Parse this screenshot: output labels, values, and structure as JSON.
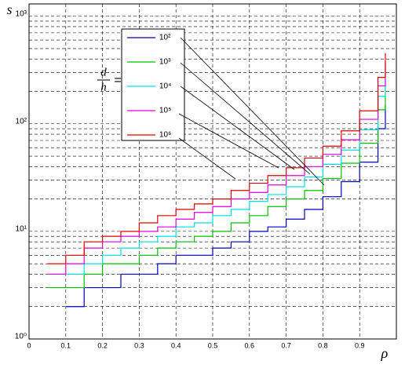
{
  "chart_data": {
    "type": "step",
    "step": "post",
    "y_label": "s",
    "x_label": "ρ",
    "legend_label_top": "d",
    "legend_label_bottom": "h",
    "legend_label_sign": "=",
    "log_y": true,
    "grid": true,
    "xlim": [
      0,
      1
    ],
    "xticks": [
      0,
      0.1,
      0.2,
      0.3,
      0.4,
      0.5,
      0.6,
      0.7,
      0.8,
      0.9
    ],
    "ylim": [
      1,
      1300
    ],
    "yticks": [
      {
        "value": 1,
        "label": "10⁰"
      },
      {
        "value": 10,
        "label": "10¹"
      },
      {
        "value": 100,
        "label": "10²"
      },
      {
        "value": 1000,
        "label": "10³"
      }
    ],
    "yminorticks": [
      2,
      3,
      4,
      5,
      6,
      7,
      8,
      9,
      20,
      30,
      40,
      50,
      60,
      70,
      80,
      90,
      200,
      300,
      400,
      500,
      600,
      700,
      800,
      900
    ],
    "x": [
      0.05,
      0.1,
      0.15,
      0.2,
      0.25,
      0.3,
      0.35,
      0.4,
      0.45,
      0.5,
      0.55,
      0.6,
      0.65,
      0.7,
      0.75,
      0.8,
      0.85,
      0.9,
      0.95,
      0.97
    ],
    "series": [
      {
        "name": "10²",
        "color": "#0000c0",
        "values": [
          null,
          2,
          3,
          3,
          4,
          4,
          5,
          6,
          6,
          7,
          8,
          10,
          11,
          13,
          16,
          21,
          29,
          44,
          90,
          151
        ]
      },
      {
        "name": "10³",
        "color": "#00c000",
        "values": [
          3,
          3,
          4,
          5,
          5,
          6,
          7,
          8,
          9,
          10,
          12,
          14,
          17,
          20,
          24,
          31,
          43,
          66,
          135,
          226
        ]
      },
      {
        "name": "10⁴",
        "color": "#00e0e0",
        "values": [
          4,
          4,
          5,
          6,
          7,
          8,
          9,
          11,
          12,
          14,
          16,
          19,
          22,
          26,
          32,
          42,
          57,
          88,
          180,
          302
        ]
      },
      {
        "name": "10⁵",
        "color": "#e000e0",
        "values": [
          4,
          5,
          7,
          8,
          9,
          10,
          11,
          13,
          15,
          17,
          20,
          23,
          27,
          33,
          40,
          52,
          71,
          110,
          225,
          377
        ]
      },
      {
        "name": "10⁶",
        "color": "#e00000",
        "values": [
          5,
          6,
          8,
          9,
          10,
          12,
          14,
          16,
          18,
          20,
          24,
          28,
          33,
          39,
          48,
          62,
          86,
          132,
          270,
          453
        ]
      }
    ]
  }
}
